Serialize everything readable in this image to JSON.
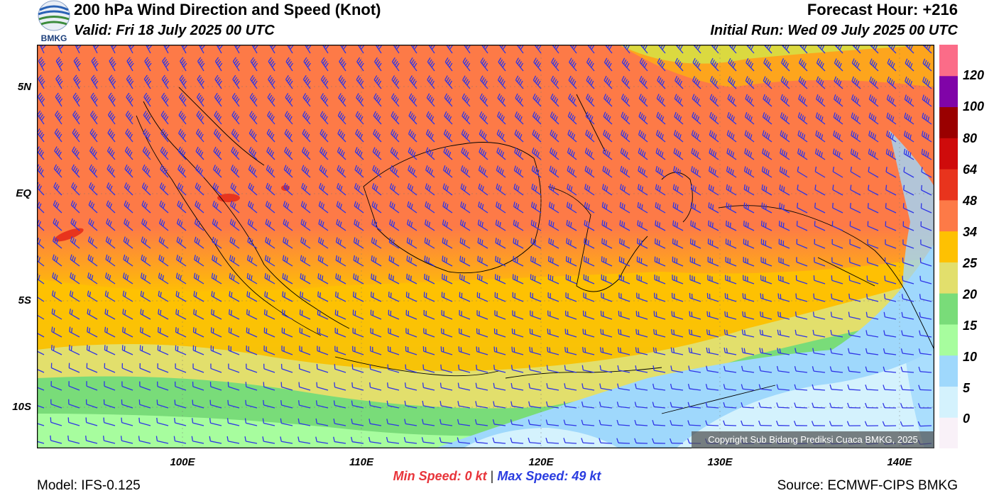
{
  "header": {
    "title": "200 hPa Wind Direction and Speed (Knot)",
    "valid": "Valid: Fri 18 July 2025 00 UTC",
    "forecast_hour": "Forecast Hour: +216",
    "initial_run": "Initial Run: Wed 09 July 2025 00 UTC"
  },
  "logo": {
    "text": "BMKG",
    "icon": "bmkg-logo-icon"
  },
  "map": {
    "lat_labels": [
      "5N",
      "EQ",
      "5S",
      "10S"
    ],
    "lon_labels": [
      "100E",
      "110E",
      "120E",
      "130E",
      "140E"
    ],
    "wind_barb_color": "#2f35e6",
    "coastline_color": "#000000"
  },
  "colorbar": {
    "labels": [
      "120",
      "100",
      "80",
      "64",
      "48",
      "34",
      "25",
      "20",
      "15",
      "10",
      "5",
      "0"
    ],
    "colors": [
      "#f9f1f8",
      "#d4f2fd",
      "#9fd8fc",
      "#a7fd9e",
      "#79dc79",
      "#e2df6c",
      "#fec102",
      "#fd7a47",
      "#e8341d",
      "#cf0b0b",
      "#9a0000",
      "#8004a8",
      "#fb6c88"
    ]
  },
  "footer": {
    "min_speed": "Min Speed:   0 kt",
    "separator": "|",
    "max_speed": "Max Speed:  49 kt",
    "model": "Model: IFS-0.125",
    "source": "Source: ECMWF-CIPS BMKG",
    "copyright": "Copyright Sub Bidang Prediksi Cuaca BMKG, 2025"
  }
}
